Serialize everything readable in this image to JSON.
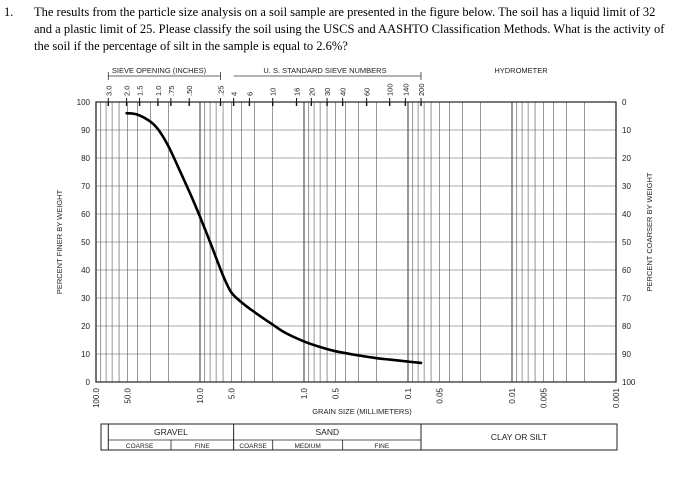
{
  "question": {
    "number": "1.",
    "lines": [
      "The results from the particle size analysis on a soil sample are presented in the figure below. The soil has a liquid limit of 32",
      "and a plastic limit of 25. Please classify the soil using the USCS and AASHTO Classification Methods. What is the activity of",
      "the soil if the percentage of silt in the sample is equal to 2.6%?"
    ]
  },
  "chart_data": {
    "type": "line",
    "x_scale": "log",
    "x_reversed": true,
    "xlim": [
      0.001,
      100
    ],
    "ylim": [
      0,
      100
    ],
    "xlabel": "GRAIN SIZE (MILLIMETERS)",
    "ylabel_left": "PERCENT FINER BY WEIGHT",
    "ylabel_right": "PERCENT COARSER BY WEIGHT",
    "top_label_sieve_opening": "SIEVE OPENING (INCHES)",
    "top_label_sieve_numbers": "U. S. STANDARD SIEVE NUMBERS",
    "top_label_hydrometer": "HYDROMETER",
    "y_ticks_left": [
      "0",
      "10",
      "20",
      "30",
      "40",
      "50",
      "60",
      "70",
      "80",
      "90",
      "100"
    ],
    "y_ticks_right": [
      "100",
      "90",
      "80",
      "70",
      "60",
      "50",
      "40",
      "30",
      "20",
      "10",
      "0"
    ],
    "x_tick_labels": [
      {
        "label": "100.0",
        "value": 100
      },
      {
        "label": "50.0",
        "value": 50
      },
      {
        "label": "10.0",
        "value": 10
      },
      {
        "label": "5.0",
        "value": 5
      },
      {
        "label": "1.0",
        "value": 1
      },
      {
        "label": "0.5",
        "value": 0.5
      },
      {
        "label": "0.1",
        "value": 0.1
      },
      {
        "label": "0.05",
        "value": 0.05
      },
      {
        "label": "0.01",
        "value": 0.01
      },
      {
        "label": "0.005",
        "value": 0.005
      },
      {
        "label": "0.001",
        "value": 0.001
      }
    ],
    "sieve_openings_inches": [
      {
        "label": "3.0",
        "value": 76.2
      },
      {
        "label": "2.0",
        "value": 50.8
      },
      {
        "label": "1.5",
        "value": 38.1
      },
      {
        "label": "1.0",
        "value": 25.4
      },
      {
        "label": ".75",
        "value": 19.05
      },
      {
        "label": ".50",
        "value": 12.7
      },
      {
        "label": ".25",
        "value": 6.35
      }
    ],
    "sieve_numbers": [
      {
        "label": "4",
        "value": 4.75
      },
      {
        "label": "6",
        "value": 3.35
      },
      {
        "label": "10",
        "value": 2.0
      },
      {
        "label": "16",
        "value": 1.18
      },
      {
        "label": "20",
        "value": 0.85
      },
      {
        "label": "30",
        "value": 0.6
      },
      {
        "label": "40",
        "value": 0.425
      },
      {
        "label": "60",
        "value": 0.25
      },
      {
        "label": "100",
        "value": 0.15
      },
      {
        "label": "140",
        "value": 0.106
      },
      {
        "label": "200",
        "value": 0.075
      }
    ],
    "series": [
      {
        "x": [
          50.8,
          40,
          30,
          25,
          20,
          15,
          12,
          10,
          8,
          6,
          5,
          4,
          3,
          2,
          1.5,
          1,
          0.7,
          0.5,
          0.3,
          0.2,
          0.15,
          0.1,
          0.075
        ],
        "y": [
          96,
          95.5,
          93,
          90,
          84,
          74,
          66,
          59,
          50,
          38,
          32,
          28.5,
          25,
          20.5,
          17.5,
          14.5,
          12.5,
          11,
          9.5,
          8.5,
          8,
          7.3,
          6.8
        ]
      }
    ],
    "classification_table": {
      "gravel": "GRAVEL",
      "gravel_coarse": "COARSE",
      "gravel_fine": "FINE",
      "sand": "SAND",
      "sand_coarse": "COARSE",
      "sand_medium": "MEDIUM",
      "sand_fine": "FINE",
      "clay_silt": "CLAY OR SILT"
    }
  }
}
